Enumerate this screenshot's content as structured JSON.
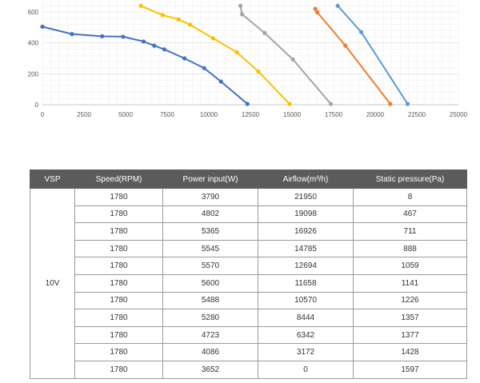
{
  "chart_data": {
    "type": "line",
    "xlim": [
      0,
      25000
    ],
    "ylim": [
      0,
      600
    ],
    "x_ticks": [
      "0",
      "2500",
      "5000",
      "7500",
      "10000",
      "12500",
      "15000",
      "17500",
      "20000",
      "22500",
      "25000"
    ],
    "y_ticks": [
      "0",
      "200",
      "400",
      "600"
    ],
    "grid": true,
    "series": [
      {
        "color": "#4472c4",
        "x": [
          0,
          1780,
          3590,
          4850,
          6080,
          6720,
          7330,
          8540,
          9720,
          10730,
          12320
        ],
        "y": [
          505,
          457,
          443,
          440,
          409,
          382,
          358,
          300,
          237,
          150,
          5
        ]
      },
      {
        "color": "#ffc000",
        "x": [
          5920,
          7230,
          8180,
          8870,
          10260,
          11680,
          12980,
          14850
        ],
        "y": [
          640,
          580,
          552,
          518,
          430,
          340,
          215,
          5
        ]
      },
      {
        "color": "#a5a5a5",
        "x": [
          11900,
          12000,
          13350,
          15060,
          17330
        ],
        "y": [
          640,
          585,
          465,
          293,
          5
        ]
      },
      {
        "color": "#ed7d31",
        "x": [
          16400,
          16520,
          18210,
          20910
        ],
        "y": [
          620,
          598,
          382,
          5
        ]
      },
      {
        "color": "#5b9bd5",
        "x": [
          17750,
          19160,
          21950
        ],
        "y": [
          640,
          470,
          5
        ]
      }
    ]
  },
  "table": {
    "headers": [
      "VSP",
      "Speed(RPM)",
      "Power input(W)",
      "Airflow(m³/h)",
      "Static pressure(Pa)"
    ],
    "vsp": "10V",
    "rows": [
      [
        "1780",
        "3790",
        "21950",
        "8"
      ],
      [
        "1780",
        "4802",
        "19098",
        "467"
      ],
      [
        "1780",
        "5365",
        "16926",
        "711"
      ],
      [
        "1780",
        "5545",
        "14785",
        "888"
      ],
      [
        "1780",
        "5570",
        "12694",
        "1059"
      ],
      [
        "1780",
        "5600",
        "11658",
        "1141"
      ],
      [
        "1780",
        "5488",
        "10570",
        "1226"
      ],
      [
        "1780",
        "5280",
        "8444",
        "1357"
      ],
      [
        "1780",
        "4723",
        "6342",
        "1377"
      ],
      [
        "1780",
        "4086",
        "3172",
        "1428"
      ],
      [
        "1780",
        "3652",
        "0",
        "1597"
      ]
    ]
  }
}
